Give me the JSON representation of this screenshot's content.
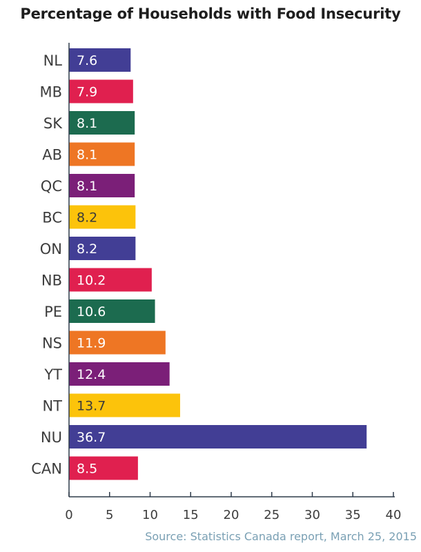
{
  "chart_data": {
    "type": "bar",
    "orientation": "horizontal",
    "title": "Percentage of Households with Food Insecurity",
    "categories": [
      "NL",
      "MB",
      "SK",
      "AB",
      "QC",
      "BC",
      "ON",
      "NB",
      "PE",
      "NS",
      "YT",
      "NT",
      "NU",
      "CAN"
    ],
    "values": [
      7.6,
      7.9,
      8.1,
      8.1,
      8.1,
      8.2,
      8.2,
      10.2,
      10.6,
      11.9,
      12.4,
      13.7,
      36.7,
      8.5
    ],
    "bar_colors": [
      "#423e95",
      "#e0204f",
      "#1c6b4f",
      "#ee7624",
      "#7b1f78",
      "#fcc30b",
      "#423e95",
      "#e0204f",
      "#1c6b4f",
      "#ee7624",
      "#7b1f78",
      "#fcc30b",
      "#423e95",
      "#e0204f"
    ],
    "label_colors": [
      "#ffffff",
      "#ffffff",
      "#ffffff",
      "#ffffff",
      "#ffffff",
      "#3a3a3a",
      "#ffffff",
      "#ffffff",
      "#ffffff",
      "#ffffff",
      "#ffffff",
      "#3a3a3a",
      "#ffffff",
      "#ffffff"
    ],
    "x_ticks": [
      0,
      5,
      10,
      15,
      20,
      25,
      30,
      35,
      40
    ],
    "xlim": [
      0,
      40
    ],
    "grid": false,
    "source": "Source: Statistics Canada report, March 25, 2015"
  }
}
